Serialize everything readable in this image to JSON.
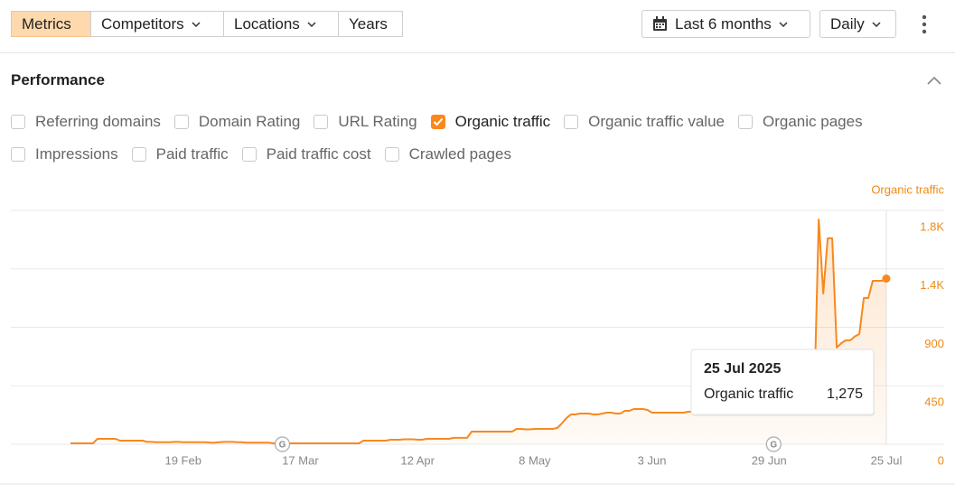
{
  "toolbar": {
    "tabs": [
      "Metrics",
      "Competitors",
      "Locations",
      "Years"
    ],
    "date_range": "Last 6 months",
    "interval": "Daily"
  },
  "section": {
    "title": "Performance",
    "metrics": [
      {
        "label": "Referring domains",
        "checked": false
      },
      {
        "label": "Domain Rating",
        "checked": false
      },
      {
        "label": "URL Rating",
        "checked": false
      },
      {
        "label": "Organic traffic",
        "checked": true
      },
      {
        "label": "Organic traffic value",
        "checked": false
      },
      {
        "label": "Organic pages",
        "checked": false
      },
      {
        "label": "Impressions",
        "checked": false
      },
      {
        "label": "Paid traffic",
        "checked": false
      },
      {
        "label": "Paid traffic cost",
        "checked": false
      },
      {
        "label": "Crawled pages",
        "checked": false
      }
    ]
  },
  "chart_data": {
    "type": "area",
    "ylabel": "Organic traffic",
    "x": [
      "25 Jan",
      "26 Jan",
      "27 Jan",
      "28 Jan",
      "29 Jan",
      "30 Jan",
      "31 Jan",
      "1 Feb",
      "2 Feb",
      "3 Feb",
      "4 Feb",
      "5 Feb",
      "6 Feb",
      "7 Feb",
      "8 Feb",
      "9 Feb",
      "10 Feb",
      "11 Feb",
      "12 Feb",
      "13 Feb",
      "14 Feb",
      "15 Feb",
      "16 Feb",
      "17 Feb",
      "18 Feb",
      "19 Feb",
      "20 Feb",
      "21 Feb",
      "22 Feb",
      "23 Feb",
      "24 Feb",
      "25 Feb",
      "26 Feb",
      "27 Feb",
      "28 Feb",
      "1 Mar",
      "2 Mar",
      "3 Mar",
      "4 Mar",
      "5 Mar",
      "6 Mar",
      "7 Mar",
      "8 Mar",
      "9 Mar",
      "10 Mar",
      "11 Mar",
      "12 Mar",
      "13 Mar",
      "14 Mar",
      "15 Mar",
      "16 Mar",
      "17 Mar",
      "18 Mar",
      "19 Mar",
      "20 Mar",
      "21 Mar",
      "22 Mar",
      "23 Mar",
      "24 Mar",
      "25 Mar",
      "26 Mar",
      "27 Mar",
      "28 Mar",
      "29 Mar",
      "30 Mar",
      "31 Mar",
      "1 Apr",
      "2 Apr",
      "3 Apr",
      "4 Apr",
      "5 Apr",
      "6 Apr",
      "7 Apr",
      "8 Apr",
      "9 Apr",
      "10 Apr",
      "11 Apr",
      "12 Apr",
      "13 Apr",
      "14 Apr",
      "15 Apr",
      "16 Apr",
      "17 Apr",
      "18 Apr",
      "19 Apr",
      "20 Apr",
      "21 Apr",
      "22 Apr",
      "23 Apr",
      "24 Apr",
      "25 Apr",
      "26 Apr",
      "27 Apr",
      "28 Apr",
      "29 Apr",
      "30 Apr",
      "1 May",
      "2 May",
      "3 May",
      "4 May",
      "5 May",
      "6 May",
      "7 May",
      "8 May",
      "9 May",
      "10 May",
      "11 May",
      "12 May",
      "13 May",
      "14 May",
      "15 May",
      "16 May",
      "17 May",
      "18 May",
      "19 May",
      "20 May",
      "21 May",
      "22 May",
      "23 May",
      "24 May",
      "25 May",
      "26 May",
      "27 May",
      "28 May",
      "29 May",
      "30 May",
      "31 May",
      "1 Jun",
      "2 Jun",
      "3 Jun",
      "4 Jun",
      "5 Jun",
      "6 Jun",
      "7 Jun",
      "8 Jun",
      "9 Jun",
      "10 Jun",
      "11 Jun",
      "12 Jun",
      "13 Jun",
      "14 Jun",
      "15 Jun",
      "16 Jun",
      "17 Jun",
      "18 Jun",
      "19 Jun",
      "20 Jun",
      "21 Jun",
      "22 Jun",
      "23 Jun",
      "24 Jun",
      "25 Jun",
      "26 Jun",
      "27 Jun",
      "28 Jun",
      "29 Jun",
      "30 Jun",
      "1 Jul",
      "2 Jul",
      "3 Jul",
      "4 Jul",
      "5 Jul",
      "6 Jul",
      "7 Jul",
      "8 Jul",
      "9 Jul",
      "10 Jul",
      "11 Jul",
      "12 Jul",
      "13 Jul",
      "14 Jul",
      "15 Jul",
      "16 Jul",
      "17 Jul",
      "18 Jul",
      "19 Jul",
      "20 Jul",
      "21 Jul",
      "22 Jul",
      "23 Jul",
      "24 Jul",
      "25 Jul"
    ],
    "series": [
      {
        "name": "Organic traffic",
        "color": "#f7891f",
        "values": [
          7,
          7,
          7,
          7,
          7,
          7,
          42,
          42,
          42,
          42,
          42,
          28,
          28,
          28,
          28,
          28,
          28,
          18,
          18,
          15,
          15,
          15,
          15,
          18,
          18,
          15,
          15,
          15,
          15,
          15,
          15,
          12,
          12,
          15,
          18,
          18,
          18,
          15,
          15,
          12,
          12,
          12,
          12,
          12,
          12,
          7,
          7,
          7,
          7,
          7,
          7,
          7,
          7,
          7,
          7,
          7,
          7,
          7,
          7,
          7,
          7,
          7,
          7,
          7,
          7,
          28,
          28,
          28,
          28,
          28,
          28,
          35,
          35,
          35,
          38,
          38,
          38,
          35,
          35,
          42,
          42,
          42,
          42,
          42,
          42,
          49,
          49,
          49,
          49,
          97,
          97,
          97,
          97,
          97,
          97,
          97,
          97,
          97,
          97,
          118,
          118,
          115,
          115,
          118,
          118,
          118,
          118,
          118,
          125,
          160,
          200,
          229,
          229,
          236,
          236,
          236,
          229,
          229,
          236,
          243,
          243,
          236,
          236,
          257,
          257,
          271,
          271,
          271,
          264,
          243,
          243,
          243,
          243,
          243,
          243,
          243,
          243,
          250,
          250,
          257,
          264,
          271,
          271,
          278,
          278,
          278,
          271,
          264,
          264,
          264,
          271,
          278,
          278,
          285,
          285,
          278,
          278,
          285,
          292,
          292,
          292,
          299,
          299,
          306,
          313,
          340,
          1730,
          1160,
          1585,
          1585,
          744,
          778,
          800,
          800,
          830,
          848,
          1126,
          1126,
          1258,
          1258,
          1258,
          1275
        ]
      }
    ],
    "ylim": [
      0,
      1800
    ],
    "yticks": [
      0,
      450,
      900,
      {
        "value": 1350,
        "label": "1.4K"
      },
      {
        "value": 1800,
        "label": "1.8K"
      }
    ],
    "xticks": [
      "19 Feb",
      "17 Mar",
      "12 Apr",
      "8 May",
      "3 Jun",
      "29 Jun",
      "25 Jul"
    ],
    "grid": true,
    "annotations": [
      {
        "x": "13 Mar",
        "label": "G"
      },
      {
        "x": "30 Jun",
        "label": "G"
      }
    ],
    "tooltip": {
      "title": "25 Jul 2025",
      "label": "1,275"
    }
  }
}
